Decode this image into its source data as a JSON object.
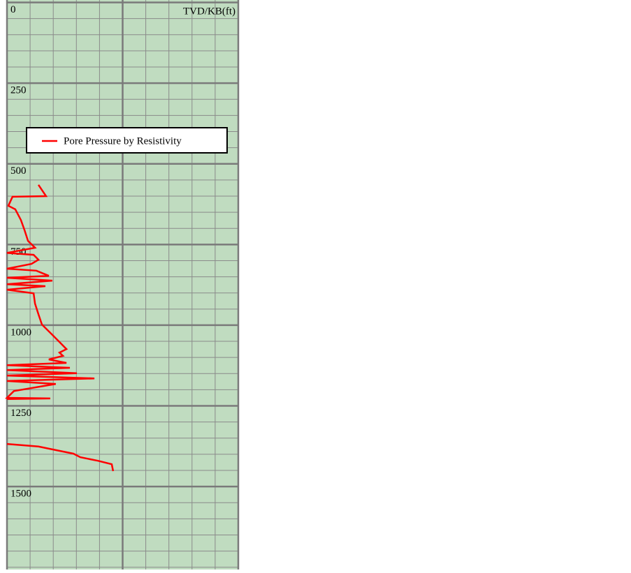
{
  "chart_data": {
    "type": "line",
    "y_label": "TVD/KB(ft)",
    "ylim": [
      0,
      1757
    ],
    "yticks": [
      0,
      250,
      500,
      750,
      1000,
      1250,
      1500
    ],
    "y_minor_step": 50,
    "xlim": [
      0,
      10
    ],
    "xticks": [
      0,
      1,
      2,
      3,
      4,
      5,
      6,
      7,
      8,
      9,
      10
    ],
    "xticks_major": [
      0,
      5,
      10
    ],
    "background": "#c0dcc0",
    "grid": true,
    "series": [
      {
        "name": "Pore Pressure by Resistivity",
        "color": "#ff0000",
        "x": [
          1.36,
          1.69,
          0.24,
          0.06,
          0.36,
          0.6,
          0.76,
          0.91,
          1.21,
          0,
          1.15,
          1.36,
          1.06,
          0,
          1.27,
          1.81,
          0,
          1.96,
          0,
          1.66,
          0,
          1.15,
          1.21,
          1.36,
          1.51,
          1.96,
          2.27,
          2.57,
          2.27,
          2.42,
          1.81,
          2.57,
          0,
          2.72,
          0,
          3.02,
          0,
          3.78,
          0,
          2.11,
          0.3,
          0,
          1.87,
          0,
          null,
          0,
          1.36,
          2.11,
          2.87,
          3.17,
          3.93,
          4.53,
          4.59
        ],
        "values": [
          565,
          600,
          602,
          630,
          641,
          674,
          706,
          739,
          760,
          776,
          782,
          797,
          810,
          825,
          831,
          847,
          853,
          862,
          873,
          879,
          890,
          901,
          933,
          966,
          998,
          1030,
          1052,
          1074,
          1085,
          1095,
          1106,
          1117,
          1124,
          1132,
          1139,
          1149,
          1156,
          1165,
          1173,
          1182,
          1204,
          1225,
          1227,
          1229,
          null,
          1368,
          1376,
          1387,
          1398,
          1409,
          1420,
          1431,
          1452
        ]
      }
    ]
  }
}
